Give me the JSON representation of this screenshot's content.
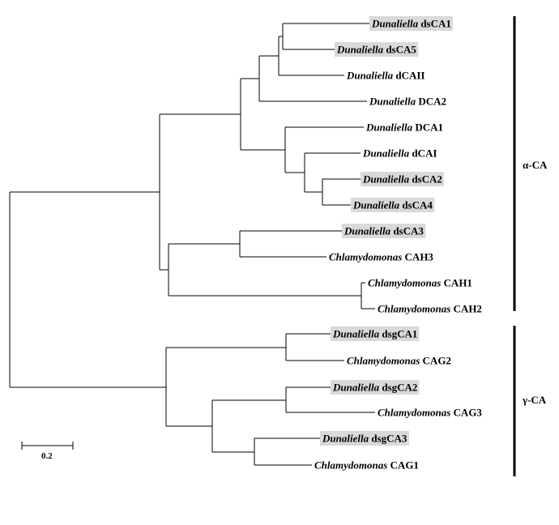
{
  "tree": {
    "leaves": [
      {
        "id": "dsCA1",
        "genus": "Dunaliella",
        "gene": "dsCA1",
        "highlighted": true
      },
      {
        "id": "dsCA5",
        "genus": "Dunaliella",
        "gene": "dsCA5",
        "highlighted": true
      },
      {
        "id": "dCAII",
        "genus": "Dunaliella",
        "gene": "dCAII",
        "highlighted": false
      },
      {
        "id": "DCA2",
        "genus": "Dunaliella",
        "gene": "DCA2",
        "highlighted": false
      },
      {
        "id": "DCA1",
        "genus": "Dunaliella",
        "gene": "DCA1",
        "highlighted": false
      },
      {
        "id": "dCAI",
        "genus": "Dunaliella",
        "gene": "dCAI",
        "highlighted": false
      },
      {
        "id": "dsCA2",
        "genus": "Dunaliella",
        "gene": "dsCA2",
        "highlighted": true
      },
      {
        "id": "dsCA4",
        "genus": "Dunaliella",
        "gene": "dsCA4",
        "highlighted": true
      },
      {
        "id": "dsCA3",
        "genus": "Dunaliella",
        "gene": "dsCA3",
        "highlighted": true
      },
      {
        "id": "CAH3",
        "genus": "Chlamydomonas",
        "gene": "CAH3",
        "highlighted": false
      },
      {
        "id": "CAH1",
        "genus": "Chlamydomonas",
        "gene": "CAH1",
        "highlighted": false
      },
      {
        "id": "CAH2",
        "genus": "Chlamydomonas",
        "gene": "CAH2",
        "highlighted": false
      },
      {
        "id": "dsgCA1",
        "genus": "Dunaliella",
        "gene": "dsgCA1",
        "highlighted": true
      },
      {
        "id": "CAG2",
        "genus": "Chlamydomonas",
        "gene": "CAG2",
        "highlighted": false
      },
      {
        "id": "dsgCA2",
        "genus": "Dunaliella",
        "gene": "dsgCA2",
        "highlighted": true
      },
      {
        "id": "CAG3",
        "genus": "Chlamydomonas",
        "gene": "CAG3",
        "highlighted": false
      },
      {
        "id": "dsgCA3",
        "genus": "Dunaliella",
        "gene": "dsgCA3",
        "highlighted": true
      },
      {
        "id": "CAG1",
        "genus": "Chlamydomonas",
        "gene": "CAG1",
        "highlighted": false
      }
    ],
    "groups": [
      {
        "label": "α-CA",
        "members": [
          "dsCA1",
          "CAH2"
        ]
      },
      {
        "label": "γ-CA",
        "members": [
          "dsgCA1",
          "CAG1"
        ]
      }
    ],
    "scale_bar": {
      "label": "0.2",
      "value": 0.2
    }
  },
  "colors": {
    "line": "#000000",
    "highlight": "#d9d9d9"
  }
}
